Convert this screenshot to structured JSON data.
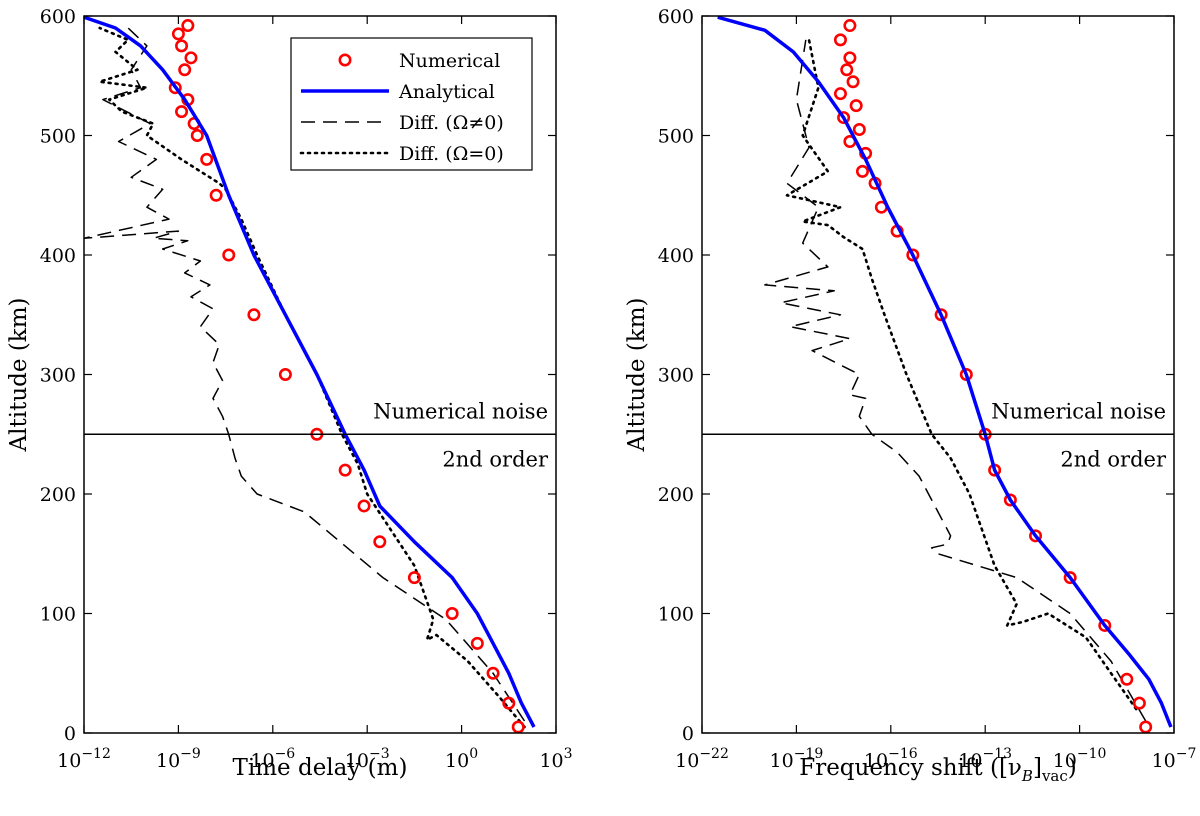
{
  "chart_data": [
    {
      "type": "line",
      "panel": "left",
      "xscale": "log",
      "xlim_exp": [
        -12,
        3
      ],
      "ylim": [
        0,
        600
      ],
      "xticks_exp": [
        -12,
        -9,
        -6,
        -3,
        0,
        3
      ],
      "xtick_base": "10",
      "yticks": [
        0,
        100,
        200,
        300,
        400,
        500,
        600
      ],
      "xlabel": "Time delay (m)",
      "ylabel": "Altitude (km)",
      "hline": 250,
      "annotations": {
        "above": "Numerical noise",
        "below": "2nd order"
      },
      "legend": {
        "position": "top-right",
        "entries": [
          "Numerical",
          "Analytical",
          "Diff. (Ω≠0)",
          "Diff. (Ω=0)"
        ]
      },
      "series": [
        {
          "name": "Analytical",
          "color": "#0000ff",
          "style": "solid",
          "x_exp": [
            2.3,
            1.9,
            1.5,
            1.0,
            0.5,
            -0.3,
            -1.5,
            -2.6,
            -3.1,
            -3.7,
            -4.6,
            -5.6,
            -6.6,
            -7.4,
            -8.1,
            -8.8,
            -9.5,
            -10.2,
            -11.0,
            -12.0
          ],
          "y": [
            5,
            25,
            50,
            75,
            100,
            130,
            160,
            190,
            220,
            250,
            300,
            350,
            400,
            450,
            500,
            530,
            555,
            575,
            590,
            599
          ]
        },
        {
          "name": "Numerical",
          "color": "#ff0000",
          "style": "markers",
          "x_exp": [
            1.8,
            1.5,
            1.0,
            0.5,
            -0.3,
            -1.5,
            -2.6,
            -3.1,
            -3.7,
            -4.6,
            -5.6,
            -6.6,
            -7.4,
            -7.8,
            -8.1,
            -8.4,
            -8.5,
            -8.9,
            -8.7,
            -9.1,
            -8.8,
            -8.6,
            -8.9,
            -9.0,
            -8.7
          ],
          "y": [
            5,
            25,
            50,
            75,
            100,
            130,
            160,
            190,
            220,
            250,
            300,
            350,
            400,
            450,
            480,
            500,
            510,
            520,
            530,
            540,
            555,
            565,
            575,
            585,
            592
          ]
        },
        {
          "name": "Diff. (Ω≠0)",
          "color": "#000000",
          "style": "dashed",
          "x_exp": [
            2.0,
            1.0,
            -0.5,
            -2.5,
            -5.0,
            -6.5,
            -7.0,
            -7.2,
            -7.4,
            -7.6,
            -7.9,
            -7.6,
            -7.9,
            -7.7,
            -8.3,
            -7.9,
            -8.6,
            -8.0,
            -8.8,
            -8.3,
            -9.5,
            -8.7,
            -9.8,
            -9.0,
            -12.0,
            -9.3,
            -10.0,
            -9.5,
            -10.5,
            -9.7,
            -10.9,
            -9.9,
            -11.4,
            -10.2,
            -10.5,
            -10.0,
            -10.6
          ],
          "y": [
            10,
            50,
            95,
            130,
            185,
            200,
            215,
            230,
            250,
            265,
            280,
            295,
            310,
            325,
            340,
            355,
            365,
            375,
            385,
            395,
            405,
            412,
            414,
            420,
            414,
            430,
            440,
            455,
            465,
            480,
            495,
            510,
            530,
            540,
            555,
            575,
            590
          ]
        },
        {
          "name": "Diff. (Ω=0)",
          "color": "#000000",
          "style": "dotted",
          "x_exp": [
            2.0,
            1.2,
            0.2,
            -0.8,
            -1.1,
            -0.9,
            -1.5,
            -3.0,
            -3.3,
            -3.8,
            -4.6,
            -5.6,
            -6.5,
            -7.0,
            -7.3,
            -7.5,
            -7.7,
            -8.3,
            -8.9,
            -10.0,
            -9.8,
            -10.8,
            -11.2,
            -10.0,
            -11.5,
            -10.3,
            -11.0,
            -10.6,
            -11.5
          ],
          "y": [
            5,
            30,
            60,
            82,
            78,
            95,
            140,
            200,
            225,
            250,
            300,
            350,
            400,
            430,
            445,
            455,
            460,
            470,
            480,
            500,
            510,
            520,
            530,
            540,
            545,
            555,
            570,
            580,
            590
          ]
        }
      ]
    },
    {
      "type": "line",
      "panel": "right",
      "xscale": "log",
      "xlim_exp": [
        -22,
        -7
      ],
      "ylim": [
        0,
        600
      ],
      "xticks_exp": [
        -22,
        -19,
        -16,
        -13,
        -10,
        -7
      ],
      "xtick_base": "10",
      "yticks": [
        0,
        100,
        200,
        300,
        400,
        500,
        600
      ],
      "xlabel": "Frequency shift ([ν",
      "xlabel_sub": "B",
      "xlabel_tail": "]",
      "xlabel_sub2": "vac",
      "xlabel_end": ")",
      "ylabel": "Altitude (km)",
      "hline": 250,
      "annotations": {
        "above": "Numerical noise",
        "below": "2nd order"
      },
      "series": [
        {
          "name": "Analytical",
          "color": "#0000ff",
          "style": "solid",
          "x_exp": [
            -7.1,
            -7.4,
            -7.8,
            -8.4,
            -9.2,
            -10.3,
            -11.4,
            -12.2,
            -12.7,
            -13.0,
            -13.6,
            -14.4,
            -15.3,
            -16.1,
            -16.8,
            -17.5,
            -18.3,
            -19.1,
            -20.0,
            -21.5
          ],
          "y": [
            5,
            25,
            45,
            65,
            90,
            130,
            165,
            195,
            220,
            250,
            300,
            350,
            400,
            440,
            480,
            515,
            545,
            570,
            588,
            599
          ]
        },
        {
          "name": "Numerical",
          "color": "#ff0000",
          "style": "markers",
          "x_exp": [
            -7.9,
            -8.1,
            -8.5,
            -9.2,
            -10.3,
            -11.4,
            -12.2,
            -12.7,
            -13.0,
            -13.6,
            -14.4,
            -15.3,
            -15.8,
            -16.3,
            -16.5,
            -16.9,
            -16.8,
            -17.3,
            -17.0,
            -17.5,
            -17.1,
            -17.6,
            -17.2,
            -17.4,
            -17.3,
            -17.6,
            -17.3
          ],
          "y": [
            5,
            25,
            45,
            90,
            130,
            165,
            195,
            220,
            250,
            300,
            350,
            400,
            420,
            440,
            460,
            470,
            485,
            495,
            505,
            515,
            525,
            535,
            545,
            555,
            565,
            580,
            592
          ]
        },
        {
          "name": "Diff. (Ω≠0)",
          "color": "#000000",
          "style": "dashed",
          "x_exp": [
            -7.9,
            -9.0,
            -10.3,
            -12.0,
            -14.5,
            -14.7,
            -14.2,
            -14.1,
            -14.5,
            -15.1,
            -15.8,
            -16.6,
            -17.0,
            -16.8,
            -17.3,
            -17.0,
            -18.5,
            -17.3,
            -19.2,
            -17.6,
            -19.5,
            -17.8,
            -20.0,
            -18.0,
            -18.8,
            -18.3,
            -19.3,
            -18.6,
            -19.0,
            -18.7
          ],
          "y": [
            10,
            60,
            100,
            130,
            150,
            155,
            158,
            165,
            185,
            215,
            235,
            250,
            265,
            280,
            283,
            300,
            320,
            330,
            340,
            350,
            360,
            370,
            375,
            390,
            410,
            440,
            460,
            490,
            530,
            580
          ]
        },
        {
          "name": "Diff. (Ω=0)",
          "color": "#000000",
          "style": "dotted",
          "x_exp": [
            -8.2,
            -9.8,
            -11.0,
            -11.8,
            -12.3,
            -12.0,
            -12.7,
            -13.5,
            -14.1,
            -14.7,
            -15.5,
            -16.2,
            -16.6,
            -16.9,
            -17.5,
            -18.0,
            -18.8,
            -17.6,
            -19.3,
            -18.0,
            -18.8,
            -18.3,
            -18.6
          ],
          "y": [
            20,
            80,
            100,
            93,
            90,
            108,
            140,
            200,
            230,
            250,
            300,
            350,
            380,
            405,
            415,
            425,
            428,
            440,
            450,
            470,
            500,
            540,
            580
          ]
        }
      ]
    }
  ]
}
